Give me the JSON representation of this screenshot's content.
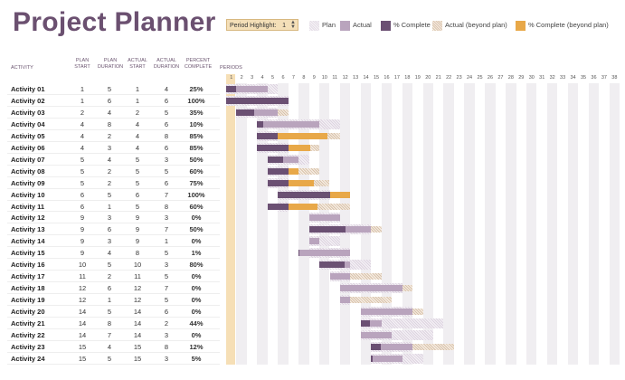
{
  "title": "Project Planner",
  "period_highlight": {
    "label": "Period Highlight:",
    "value": "1"
  },
  "legend": [
    {
      "key": "plan",
      "label": "Plan",
      "icon": "plan-swatch"
    },
    {
      "key": "actual",
      "label": "Actual",
      "icon": "actual-swatch"
    },
    {
      "key": "complete",
      "label": "% Complete",
      "icon": "complete-swatch"
    },
    {
      "key": "beyond",
      "label": "Actual (beyond plan)",
      "icon": "beyond-swatch"
    },
    {
      "key": "cbeyond",
      "label": "% Complete (beyond plan)",
      "icon": "complete-beyond-swatch"
    }
  ],
  "columns": {
    "activity": "ACTIVITY",
    "plan_start": "PLAN START",
    "plan_duration": "PLAN DURATION",
    "actual_start": "ACTUAL START",
    "actual_duration": "ACTUAL DURATION",
    "percent_complete": "PERCENT COMPLETE",
    "periods": "PERIODS"
  },
  "periods": [
    1,
    2,
    3,
    4,
    5,
    6,
    7,
    8,
    9,
    10,
    11,
    12,
    13,
    14,
    15,
    16,
    17,
    18,
    19,
    20,
    21,
    22,
    23,
    24,
    25,
    26,
    27,
    28,
    29,
    30,
    31,
    32,
    33,
    34,
    35,
    36,
    37,
    38
  ],
  "colors": {
    "plan": "#e4dde6",
    "actual": "#b9a4bd",
    "complete": "#6b5073",
    "beyond": "#dcc6b0",
    "complete_beyond": "#e8a848",
    "title": "#6b5070"
  },
  "activities": [
    {
      "name": "Activity 01",
      "ps": 1,
      "pd": 5,
      "as": 1,
      "ad": 4,
      "pct": "25%",
      "p": 25
    },
    {
      "name": "Activity 02",
      "ps": 1,
      "pd": 6,
      "as": 1,
      "ad": 6,
      "pct": "100%",
      "p": 100
    },
    {
      "name": "Activity 03",
      "ps": 2,
      "pd": 4,
      "as": 2,
      "ad": 5,
      "pct": "35%",
      "p": 35
    },
    {
      "name": "Activity 04",
      "ps": 4,
      "pd": 8,
      "as": 4,
      "ad": 6,
      "pct": "10%",
      "p": 10
    },
    {
      "name": "Activity 05",
      "ps": 4,
      "pd": 2,
      "as": 4,
      "ad": 8,
      "pct": "85%",
      "p": 85
    },
    {
      "name": "Activity 06",
      "ps": 4,
      "pd": 3,
      "as": 4,
      "ad": 6,
      "pct": "85%",
      "p": 85
    },
    {
      "name": "Activity 07",
      "ps": 5,
      "pd": 4,
      "as": 5,
      "ad": 3,
      "pct": "50%",
      "p": 50
    },
    {
      "name": "Activity 08",
      "ps": 5,
      "pd": 2,
      "as": 5,
      "ad": 5,
      "pct": "60%",
      "p": 60
    },
    {
      "name": "Activity 09",
      "ps": 5,
      "pd": 2,
      "as": 5,
      "ad": 6,
      "pct": "75%",
      "p": 75
    },
    {
      "name": "Activity 10",
      "ps": 6,
      "pd": 5,
      "as": 6,
      "ad": 7,
      "pct": "100%",
      "p": 100
    },
    {
      "name": "Activity 11",
      "ps": 6,
      "pd": 1,
      "as": 5,
      "ad": 8,
      "pct": "60%",
      "p": 60
    },
    {
      "name": "Activity 12",
      "ps": 9,
      "pd": 3,
      "as": 9,
      "ad": 3,
      "pct": "0%",
      "p": 0
    },
    {
      "name": "Activity 13",
      "ps": 9,
      "pd": 6,
      "as": 9,
      "ad": 7,
      "pct": "50%",
      "p": 50
    },
    {
      "name": "Activity 14",
      "ps": 9,
      "pd": 3,
      "as": 9,
      "ad": 1,
      "pct": "0%",
      "p": 0
    },
    {
      "name": "Activity 15",
      "ps": 9,
      "pd": 4,
      "as": 8,
      "ad": 5,
      "pct": "1%",
      "p": 1
    },
    {
      "name": "Activity 16",
      "ps": 10,
      "pd": 5,
      "as": 10,
      "ad": 3,
      "pct": "80%",
      "p": 80
    },
    {
      "name": "Activity 17",
      "ps": 11,
      "pd": 2,
      "as": 11,
      "ad": 5,
      "pct": "0%",
      "p": 0
    },
    {
      "name": "Activity 18",
      "ps": 12,
      "pd": 6,
      "as": 12,
      "ad": 7,
      "pct": "0%",
      "p": 0
    },
    {
      "name": "Activity 19",
      "ps": 12,
      "pd": 1,
      "as": 12,
      "ad": 5,
      "pct": "0%",
      "p": 0
    },
    {
      "name": "Activity 20",
      "ps": 14,
      "pd": 5,
      "as": 14,
      "ad": 6,
      "pct": "0%",
      "p": 0
    },
    {
      "name": "Activity 21",
      "ps": 14,
      "pd": 8,
      "as": 14,
      "ad": 2,
      "pct": "44%",
      "p": 44
    },
    {
      "name": "Activity 22",
      "ps": 14,
      "pd": 7,
      "as": 14,
      "ad": 3,
      "pct": "0%",
      "p": 0
    },
    {
      "name": "Activity 23",
      "ps": 15,
      "pd": 4,
      "as": 15,
      "ad": 8,
      "pct": "12%",
      "p": 12
    },
    {
      "name": "Activity 24",
      "ps": 15,
      "pd": 5,
      "as": 15,
      "ad": 3,
      "pct": "5%",
      "p": 5
    }
  ]
}
